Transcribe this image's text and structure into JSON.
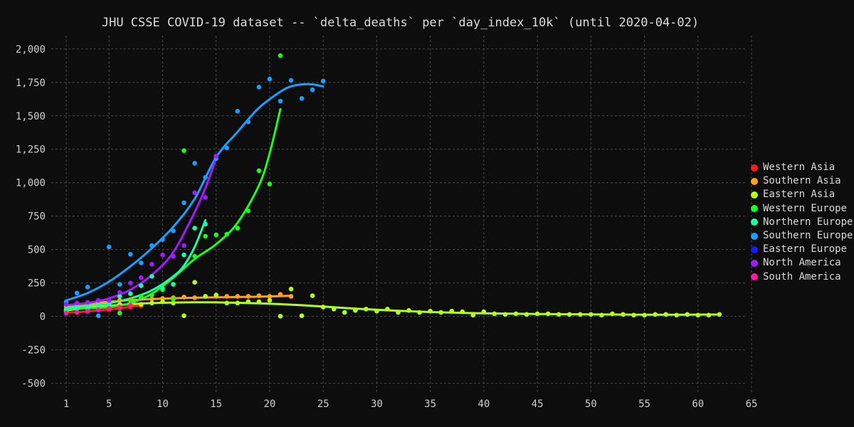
{
  "chart_data": {
    "type": "scatter",
    "title": "JHU CSSE COVID-19 dataset -- `delta_deaths` per `day_index_10k` (until 2020-04-02)",
    "xlabel": "",
    "ylabel": "",
    "xlim": [
      0,
      65
    ],
    "ylim": [
      -550,
      2100
    ],
    "x_ticks": [
      1,
      5,
      10,
      15,
      20,
      25,
      30,
      35,
      40,
      45,
      50,
      55,
      60,
      65
    ],
    "y_ticks": [
      -500,
      -250,
      0,
      250,
      500,
      750,
      1000,
      1250,
      1500,
      1750,
      2000
    ],
    "y_tick_labels": [
      "-500",
      "-250",
      "0",
      "250",
      "500",
      "750",
      "1,000",
      "1,250",
      "1,500",
      "1,750",
      "2,000"
    ],
    "grid": true,
    "legend_position": "right",
    "series": [
      {
        "name": "Western Asia",
        "color": "#ff1a1a",
        "points": [
          [
            1,
            30
          ],
          [
            2,
            30
          ],
          [
            3,
            35
          ],
          [
            4,
            45
          ],
          [
            5,
            50
          ],
          [
            6,
            60
          ],
          [
            7,
            70
          ],
          [
            8,
            80
          ]
        ],
        "trend": [
          [
            1,
            28
          ],
          [
            2,
            32
          ],
          [
            3,
            38
          ],
          [
            4,
            45
          ],
          [
            5,
            52
          ],
          [
            6,
            62
          ],
          [
            7,
            72
          ],
          [
            8,
            85
          ]
        ]
      },
      {
        "name": "Southern Asia",
        "color": "#ffa31a",
        "points": [
          [
            1,
            75
          ],
          [
            2,
            95
          ],
          [
            3,
            100
          ],
          [
            4,
            110
          ],
          [
            5,
            115
          ],
          [
            6,
            120
          ],
          [
            7,
            125
          ],
          [
            8,
            135
          ],
          [
            9,
            130
          ],
          [
            10,
            135
          ],
          [
            11,
            140
          ],
          [
            12,
            145
          ],
          [
            13,
            140
          ],
          [
            14,
            150
          ],
          [
            15,
            150
          ],
          [
            16,
            150
          ],
          [
            17,
            150
          ],
          [
            18,
            150
          ],
          [
            19,
            155
          ],
          [
            20,
            150
          ],
          [
            21,
            165
          ],
          [
            22,
            150
          ]
        ],
        "trend": [
          [
            1,
            75
          ],
          [
            3,
            95
          ],
          [
            5,
            110
          ],
          [
            7,
            122
          ],
          [
            9,
            130
          ],
          [
            11,
            136
          ],
          [
            13,
            140
          ],
          [
            15,
            143
          ],
          [
            17,
            145
          ],
          [
            19,
            148
          ],
          [
            21,
            152
          ],
          [
            22,
            155
          ]
        ]
      },
      {
        "name": "Eastern Asia",
        "color": "#b3ff1a",
        "points": [
          [
            1,
            40
          ],
          [
            2,
            60
          ],
          [
            3,
            70
          ],
          [
            4,
            75
          ],
          [
            5,
            80
          ],
          [
            6,
            90
          ],
          [
            7,
            95
          ],
          [
            8,
            90
          ],
          [
            9,
            100
          ],
          [
            10,
            110
          ],
          [
            11,
            100
          ],
          [
            12,
            5
          ],
          [
            13,
            255
          ],
          [
            14,
            150
          ],
          [
            15,
            160
          ],
          [
            16,
            100
          ],
          [
            17,
            100
          ],
          [
            18,
            110
          ],
          [
            19,
            110
          ],
          [
            20,
            120
          ],
          [
            21,
            2
          ],
          [
            22,
            205
          ],
          [
            23,
            5
          ],
          [
            24,
            155
          ],
          [
            25,
            70
          ],
          [
            26,
            55
          ],
          [
            27,
            30
          ],
          [
            28,
            45
          ],
          [
            29,
            55
          ],
          [
            30,
            40
          ],
          [
            31,
            55
          ],
          [
            32,
            30
          ],
          [
            33,
            45
          ],
          [
            34,
            30
          ],
          [
            35,
            40
          ],
          [
            36,
            30
          ],
          [
            37,
            40
          ],
          [
            38,
            35
          ],
          [
            39,
            10
          ],
          [
            40,
            35
          ],
          [
            41,
            20
          ],
          [
            42,
            15
          ],
          [
            43,
            20
          ],
          [
            44,
            15
          ],
          [
            45,
            20
          ],
          [
            46,
            20
          ],
          [
            47,
            15
          ],
          [
            48,
            15
          ],
          [
            49,
            15
          ],
          [
            50,
            15
          ],
          [
            51,
            10
          ],
          [
            52,
            20
          ],
          [
            53,
            15
          ],
          [
            54,
            10
          ],
          [
            55,
            10
          ],
          [
            56,
            15
          ],
          [
            57,
            15
          ],
          [
            58,
            10
          ],
          [
            59,
            15
          ],
          [
            60,
            10
          ],
          [
            61,
            10
          ],
          [
            62,
            15
          ]
        ],
        "trend": [
          [
            1,
            45
          ],
          [
            3,
            65
          ],
          [
            5,
            80
          ],
          [
            7,
            92
          ],
          [
            9,
            100
          ],
          [
            11,
            104
          ],
          [
            13,
            106
          ],
          [
            15,
            105
          ],
          [
            17,
            102
          ],
          [
            19,
            98
          ],
          [
            21,
            92
          ],
          [
            23,
            84
          ],
          [
            25,
            74
          ],
          [
            27,
            63
          ],
          [
            29,
            54
          ],
          [
            31,
            46
          ],
          [
            33,
            39
          ],
          [
            35,
            33
          ],
          [
            37,
            29
          ],
          [
            39,
            25
          ],
          [
            41,
            22
          ],
          [
            43,
            20
          ],
          [
            45,
            18
          ],
          [
            47,
            17
          ],
          [
            49,
            16
          ],
          [
            51,
            15
          ],
          [
            53,
            14
          ],
          [
            55,
            13
          ],
          [
            57,
            13
          ],
          [
            59,
            13
          ],
          [
            61,
            14
          ],
          [
            62,
            14
          ]
        ]
      },
      {
        "name": "Western Europe",
        "color": "#1aff1a",
        "points": [
          [
            1,
            50
          ],
          [
            2,
            60
          ],
          [
            3,
            55
          ],
          [
            4,
            60
          ],
          [
            5,
            80
          ],
          [
            6,
            25
          ],
          [
            7,
            120
          ],
          [
            8,
            150
          ],
          [
            9,
            160
          ],
          [
            10,
            200
          ],
          [
            11,
            130
          ],
          [
            12,
            1240
          ],
          [
            13,
            450
          ],
          [
            14,
            600
          ],
          [
            15,
            610
          ],
          [
            16,
            615
          ],
          [
            17,
            660
          ],
          [
            18,
            790
          ],
          [
            19,
            1090
          ],
          [
            20,
            990
          ],
          [
            21,
            1950
          ]
        ],
        "trend": [
          [
            1,
            60
          ],
          [
            3,
            62
          ],
          [
            5,
            70
          ],
          [
            7,
            100
          ],
          [
            9,
            170
          ],
          [
            11,
            290
          ],
          [
            13,
            430
          ],
          [
            15,
            540
          ],
          [
            17,
            700
          ],
          [
            19,
            980
          ],
          [
            20,
            1220
          ],
          [
            21,
            1550
          ]
        ]
      },
      {
        "name": "Northern Europe",
        "color": "#1affa3",
        "points": [
          [
            1,
            55
          ],
          [
            2,
            60
          ],
          [
            3,
            70
          ],
          [
            4,
            80
          ],
          [
            5,
            90
          ],
          [
            6,
            150
          ],
          [
            7,
            170
          ],
          [
            8,
            230
          ],
          [
            9,
            300
          ],
          [
            10,
            210
          ],
          [
            11,
            240
          ],
          [
            12,
            460
          ],
          [
            13,
            660
          ],
          [
            14,
            690
          ]
        ],
        "trend": [
          [
            1,
            65
          ],
          [
            3,
            80
          ],
          [
            5,
            100
          ],
          [
            7,
            135
          ],
          [
            9,
            195
          ],
          [
            11,
            300
          ],
          [
            12,
            380
          ],
          [
            13,
            520
          ],
          [
            14,
            720
          ]
        ]
      },
      {
        "name": "Southern Europe",
        "color": "#1a9fff",
        "points": [
          [
            1,
            110
          ],
          [
            2,
            175
          ],
          [
            3,
            220
          ],
          [
            4,
            5
          ],
          [
            5,
            520
          ],
          [
            6,
            240
          ],
          [
            7,
            465
          ],
          [
            8,
            400
          ],
          [
            9,
            530
          ],
          [
            10,
            575
          ],
          [
            11,
            640
          ],
          [
            12,
            850
          ],
          [
            13,
            1145
          ],
          [
            14,
            1040
          ],
          [
            15,
            1180
          ],
          [
            16,
            1260
          ],
          [
            17,
            1535
          ],
          [
            18,
            1455
          ],
          [
            19,
            1715
          ],
          [
            20,
            1775
          ],
          [
            21,
            1610
          ],
          [
            22,
            1765
          ],
          [
            23,
            1630
          ],
          [
            24,
            1695
          ],
          [
            25,
            1760
          ]
        ],
        "trend": [
          [
            1,
            120
          ],
          [
            3,
            175
          ],
          [
            5,
            260
          ],
          [
            7,
            375
          ],
          [
            9,
            510
          ],
          [
            11,
            670
          ],
          [
            13,
            880
          ],
          [
            15,
            1190
          ],
          [
            17,
            1380
          ],
          [
            19,
            1560
          ],
          [
            21,
            1680
          ],
          [
            22,
            1720
          ],
          [
            23,
            1735
          ],
          [
            24,
            1735
          ],
          [
            25,
            1720
          ]
        ]
      },
      {
        "name": "Eastern Europe",
        "color": "#1a1aff",
        "points": [
          [
            1,
            20
          ],
          [
            2,
            30
          ],
          [
            3,
            35
          ],
          [
            4,
            45
          ]
        ],
        "trend": []
      },
      {
        "name": "North America",
        "color": "#a31aff",
        "points": [
          [
            1,
            90
          ],
          [
            2,
            100
          ],
          [
            3,
            105
          ],
          [
            4,
            120
          ],
          [
            5,
            120
          ],
          [
            6,
            180
          ],
          [
            7,
            250
          ],
          [
            8,
            290
          ],
          [
            9,
            390
          ],
          [
            10,
            460
          ],
          [
            11,
            450
          ],
          [
            12,
            530
          ],
          [
            13,
            925
          ],
          [
            14,
            890
          ],
          [
            15,
            1200
          ]
        ],
        "trend": [
          [
            1,
            85
          ],
          [
            3,
            100
          ],
          [
            5,
            135
          ],
          [
            7,
            200
          ],
          [
            9,
            310
          ],
          [
            11,
            480
          ],
          [
            13,
            780
          ],
          [
            14,
            960
          ],
          [
            15,
            1180
          ]
        ]
      },
      {
        "name": "South America",
        "color": "#ff1aa3",
        "points": [
          [
            1,
            25
          ],
          [
            2,
            30
          ],
          [
            3,
            40
          ],
          [
            4,
            50
          ],
          [
            5,
            60
          ],
          [
            6,
            70
          ],
          [
            7,
            85
          ]
        ],
        "trend": []
      }
    ]
  }
}
